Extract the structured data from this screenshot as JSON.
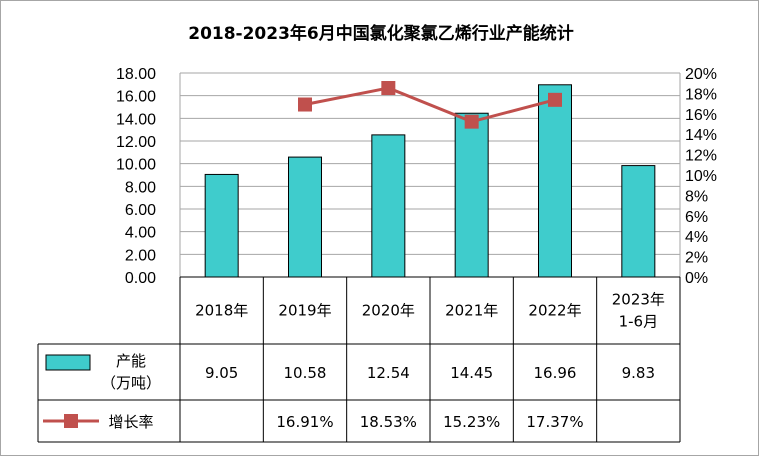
{
  "chart_data": {
    "type": "bar",
    "title": "2018-2023年6月中国氯化聚氯乙烯行业产能统计",
    "categories": [
      "2018年",
      "2019年",
      "2020年",
      "2021年",
      "2022年",
      "2023年\n1-6月"
    ],
    "series": [
      {
        "name": "产能\n（万吨）",
        "type": "bar",
        "axis": "left",
        "color": "#3fcccc",
        "values": [
          9.05,
          10.58,
          12.54,
          14.45,
          16.96,
          9.83
        ],
        "labels": [
          "9.05",
          "10.58",
          "12.54",
          "14.45",
          "16.96",
          "9.83"
        ]
      },
      {
        "name": "增长率",
        "type": "line",
        "axis": "right",
        "color": "#c0504d",
        "values": [
          null,
          16.91,
          18.53,
          15.23,
          17.37,
          null
        ],
        "labels": [
          "",
          "16.91%",
          "18.53%",
          "15.23%",
          "17.37%",
          ""
        ]
      }
    ],
    "y_left": {
      "ylim": [
        0,
        18
      ],
      "ticks": [
        "0.00",
        "2.00",
        "4.00",
        "6.00",
        "8.00",
        "10.00",
        "12.00",
        "14.00",
        "16.00",
        "18.00"
      ]
    },
    "y_right": {
      "ylim": [
        0,
        20
      ],
      "ticks": [
        "0%",
        "2%",
        "4%",
        "6%",
        "8%",
        "10%",
        "12%",
        "14%",
        "16%",
        "18%",
        "20%"
      ]
    },
    "grid": true,
    "legend": "data-table"
  }
}
